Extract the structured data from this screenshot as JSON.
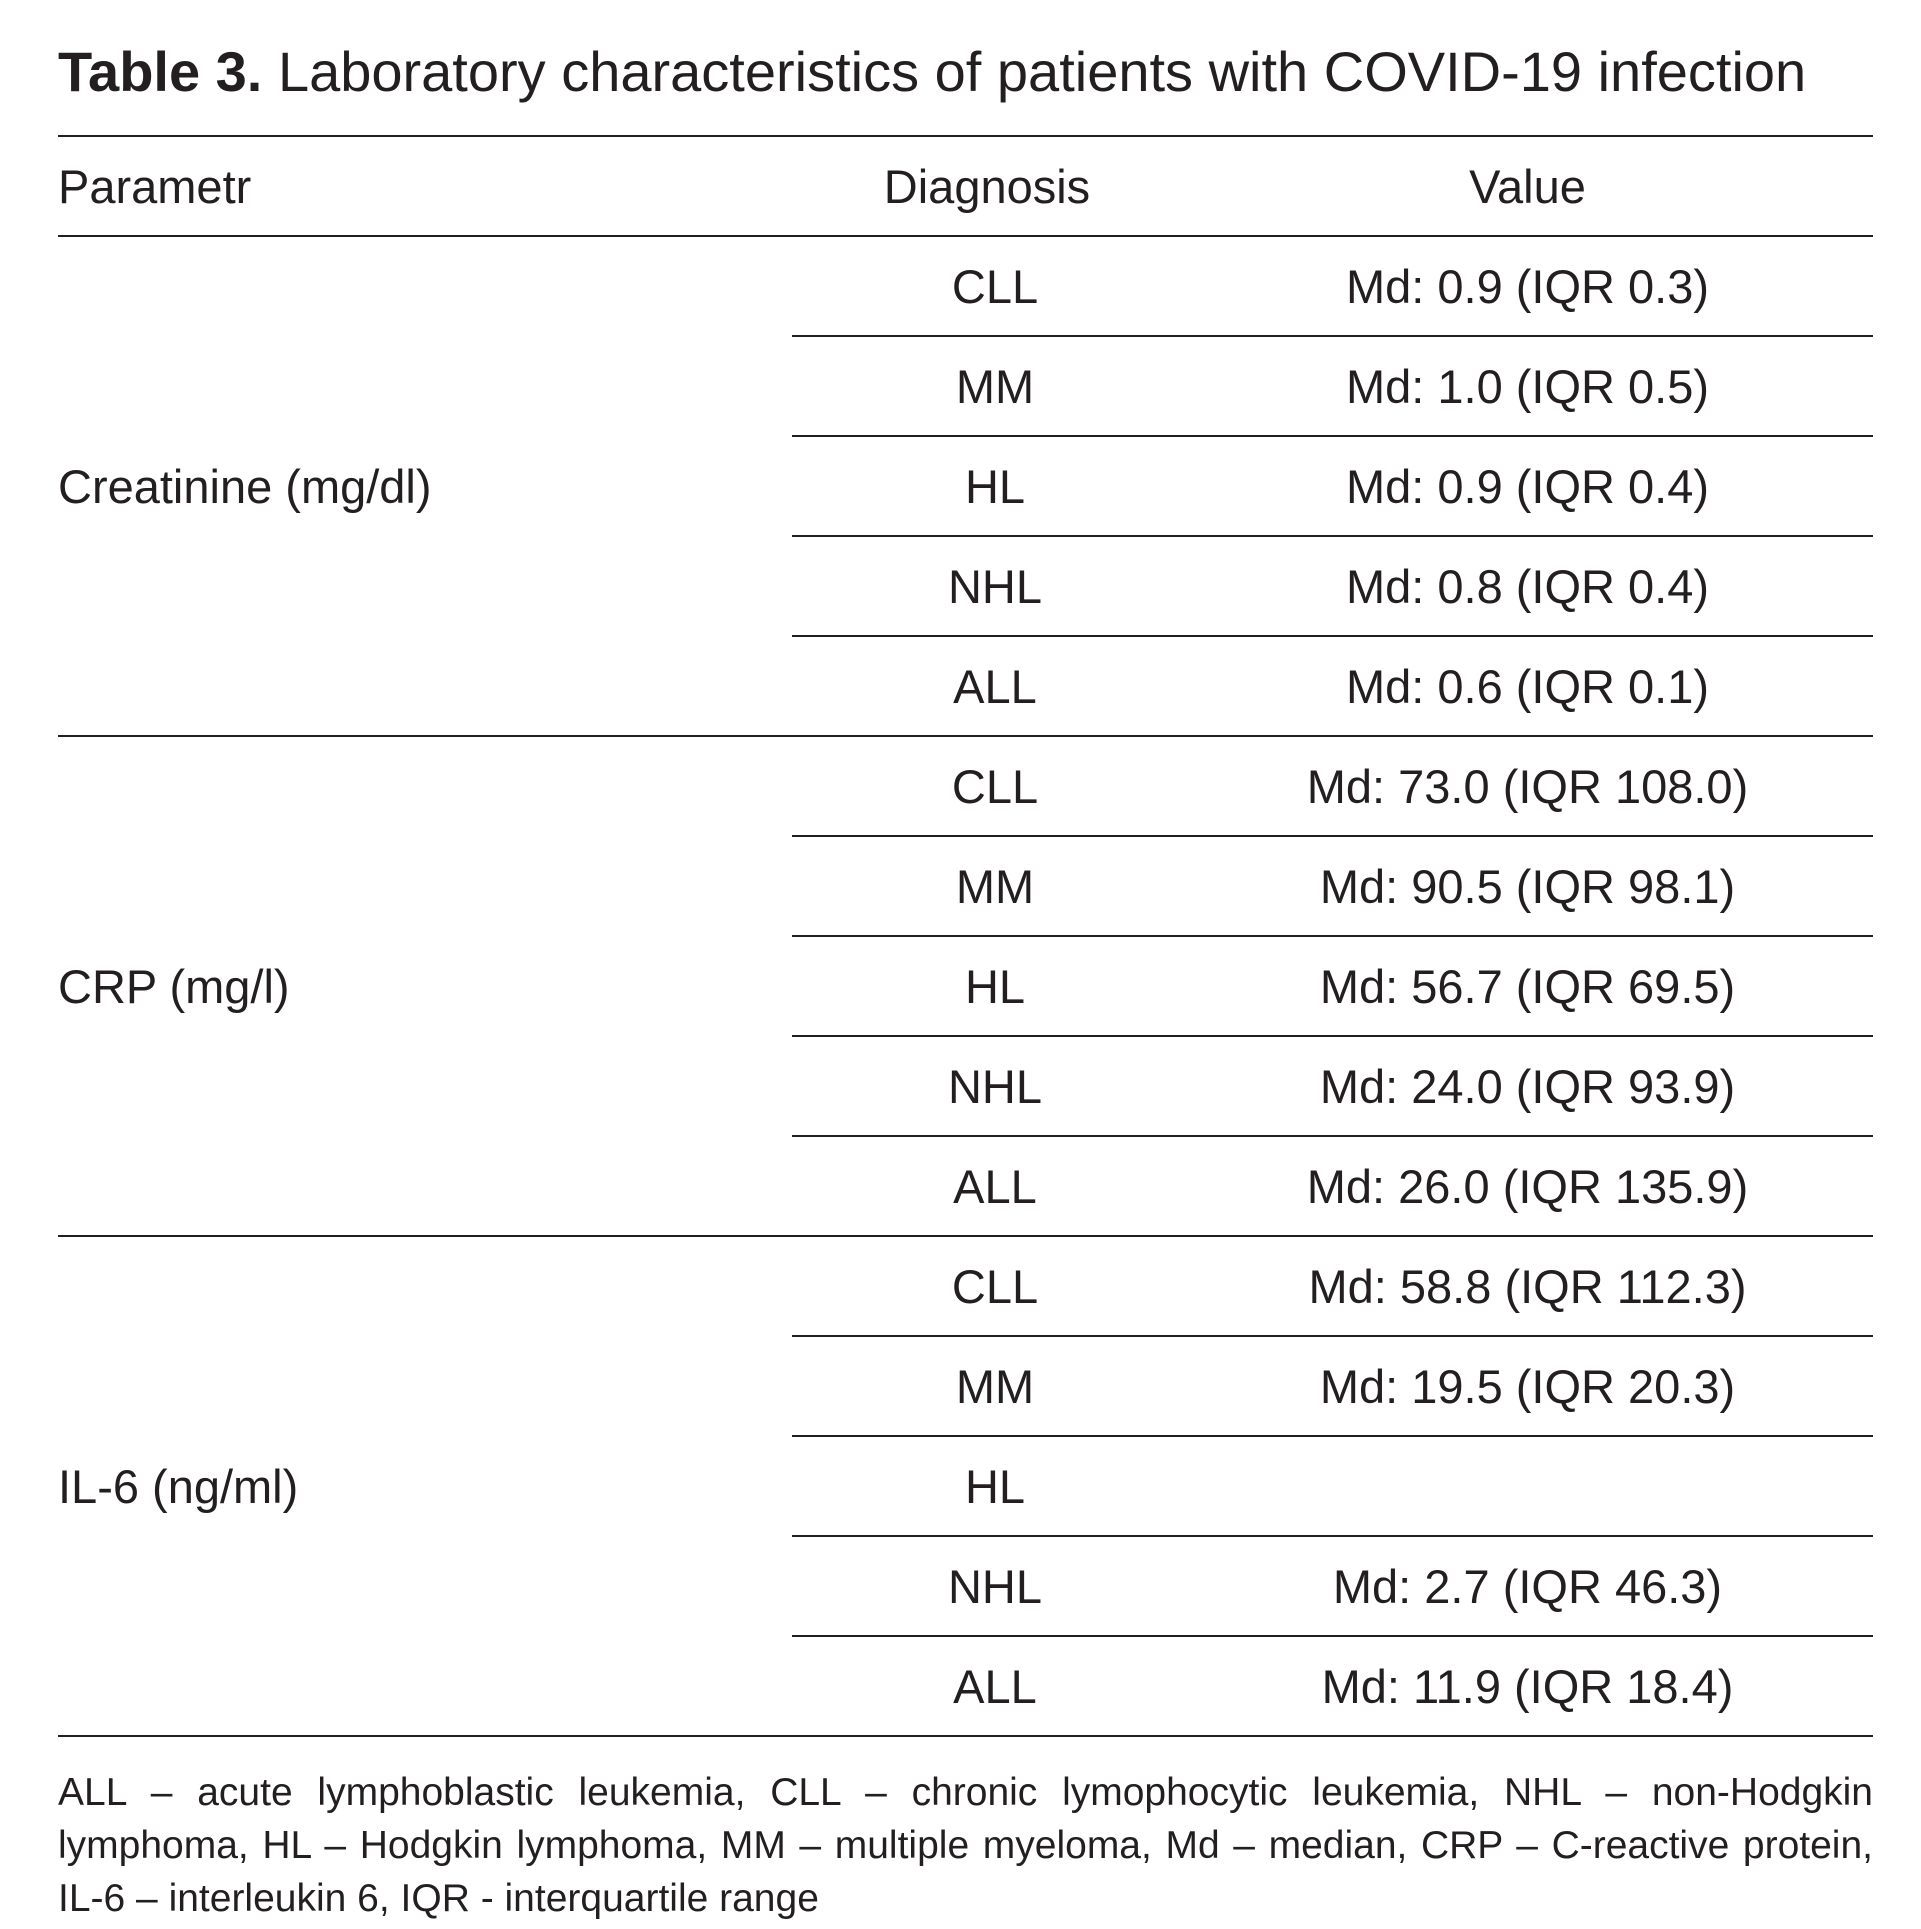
{
  "title": {
    "label": "Table 3.",
    "text": "Laboratory characteristics of patients with COVID-19 infection"
  },
  "headers": {
    "parameter": "Parametr",
    "diagnosis": "Diagnosis",
    "value": "Value"
  },
  "groups": [
    {
      "parameter": "Creatinine (mg/dl)",
      "rows": [
        {
          "diagnosis": "CLL",
          "value": "Md: 0.9 (IQR 0.3)"
        },
        {
          "diagnosis": "MM",
          "value": "Md: 1.0 (IQR 0.5)"
        },
        {
          "diagnosis": "HL",
          "value": "Md: 0.9 (IQR 0.4)"
        },
        {
          "diagnosis": "NHL",
          "value": "Md: 0.8 (IQR 0.4)"
        },
        {
          "diagnosis": "ALL",
          "value": "Md: 0.6 (IQR 0.1)"
        }
      ]
    },
    {
      "parameter": "CRP (mg/l)",
      "rows": [
        {
          "diagnosis": "CLL",
          "value": "Md: 73.0 (IQR 108.0)"
        },
        {
          "diagnosis": "MM",
          "value": "Md: 90.5 (IQR 98.1)"
        },
        {
          "diagnosis": "HL",
          "value": "Md: 56.7 (IQR 69.5)"
        },
        {
          "diagnosis": "NHL",
          "value": "Md: 24.0 (IQR 93.9)"
        },
        {
          "diagnosis": "ALL",
          "value": "Md: 26.0 (IQR 135.9)"
        }
      ]
    },
    {
      "parameter": "IL-6 (ng/ml)",
      "rows": [
        {
          "diagnosis": "CLL",
          "value": "Md: 58.8 (IQR 112.3)"
        },
        {
          "diagnosis": "MM",
          "value": "Md: 19.5 (IQR 20.3)"
        },
        {
          "diagnosis": "HL",
          "value": ""
        },
        {
          "diagnosis": "NHL",
          "value": "Md: 2.7 (IQR 46.3)"
        },
        {
          "diagnosis": "ALL",
          "value": "Md: 11.9 (IQR 18.4)"
        }
      ]
    }
  ],
  "footnote": "ALL – acute lymphoblastic leukemia, CLL – chronic lymophocytic leukemia, NHL – non-Hodgkin lymphoma, HL – Hodgkin lymphoma, MM – multiple myeloma, Md – median, CRP – C-reactive protein, IL-6 – interleukin 6, IQR - interquartile range"
}
